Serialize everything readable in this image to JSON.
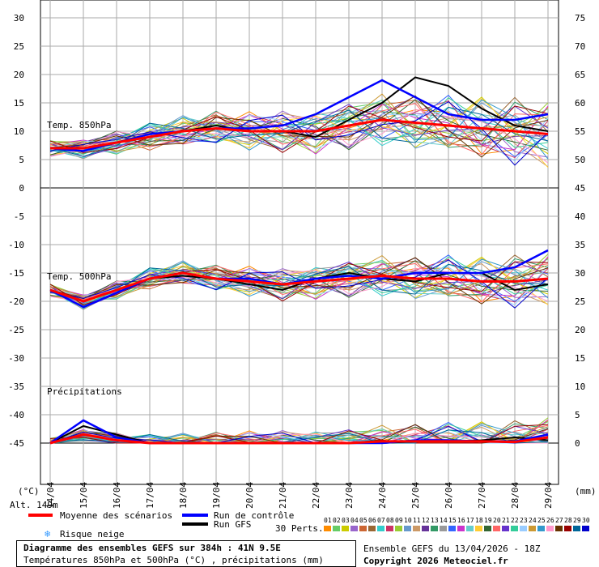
{
  "header": {
    "title_line1": "Diagramme des ensembles GEFS sur 384h : 41N 9.5E",
    "title_line2": "Températures 850hPa et 500hPa (°C) , précipitations (mm)",
    "run_info": "Ensemble GEFS du 13/04/2026 - 18Z",
    "copyright": "Copyright 2026 Meteociel.fr"
  },
  "legend": {
    "mean": "Moyenne des scénarios",
    "control": "Run de contrôle",
    "gfs": "Run GFS",
    "snow": "Risque neige",
    "perts": "30 Perts.",
    "pert_labels": [
      "01",
      "02",
      "03",
      "04",
      "05",
      "06",
      "07",
      "08",
      "09",
      "10",
      "11",
      "12",
      "13",
      "14",
      "15",
      "16",
      "17",
      "18",
      "19",
      "20",
      "21",
      "22",
      "23",
      "24",
      "25",
      "26",
      "27",
      "28",
      "29",
      "30"
    ],
    "pert_colors": [
      "#ff8c00",
      "#66cc66",
      "#cccc00",
      "#9966cc",
      "#cc6633",
      "#996633",
      "#33cccc",
      "#cc3366",
      "#99cc33",
      "#6699cc",
      "#cc9966",
      "#663399",
      "#339966",
      "#999999",
      "#3366ff",
      "#cc33cc",
      "#66cccc",
      "#ffcc33",
      "#336633",
      "#ff6666",
      "#6633cc",
      "#33cc99",
      "#99ccff",
      "#cc9933",
      "#3399cc",
      "#ff99cc",
      "#663300",
      "#990000",
      "#006699",
      "#0000cc"
    ],
    "mean_color": "#ff0000",
    "control_color": "#0000ff",
    "gfs_color": "#000000"
  },
  "panels": {
    "t850_label": "Temp. 850hPa",
    "t500_label": "Temp. 500hPa",
    "precip_label": "Précipitations",
    "alt_label": "Alt. 149m",
    "unit_left": "(°C)",
    "unit_right": "(mm)"
  },
  "chart_data": {
    "type": "line",
    "x_dates": [
      "14/04",
      "15/04",
      "16/04",
      "17/04",
      "18/04",
      "19/04",
      "20/04",
      "21/04",
      "22/04",
      "23/04",
      "24/04",
      "25/04",
      "26/04",
      "27/04",
      "28/04",
      "29/04"
    ],
    "left_axis_ticks": [
      30,
      25,
      20,
      15,
      10,
      5,
      0,
      -5,
      -10,
      -15,
      -20,
      -25,
      -30,
      -35,
      -40,
      -45
    ],
    "right_axis_ticks": [
      75,
      70,
      65,
      60,
      55,
      50,
      45,
      40,
      35,
      30,
      25,
      20,
      15,
      10,
      5,
      0
    ],
    "ylim_left": [
      -45,
      30
    ],
    "t850": {
      "mean": [
        7,
        7,
        8,
        9,
        10,
        10.5,
        10,
        10,
        10,
        11,
        12,
        11.5,
        11,
        10.5,
        10,
        9.5
      ],
      "control": [
        7,
        6.5,
        8,
        9.5,
        10,
        10.5,
        10.5,
        11,
        13,
        16,
        19,
        16,
        13,
        12,
        12,
        13
      ],
      "gfs": [
        7,
        7,
        8,
        9.5,
        10,
        11,
        10,
        10,
        9,
        12,
        15,
        19.5,
        18,
        14,
        11,
        10
      ]
    },
    "t500": {
      "mean": [
        -18,
        -20,
        -18,
        -16,
        -15,
        -16,
        -16.5,
        -17,
        -16.5,
        -16,
        -15.5,
        -16,
        -16,
        -16.5,
        -16.5,
        -16
      ],
      "control": [
        -18,
        -21,
        -18.5,
        -16,
        -15,
        -16,
        -16,
        -17,
        -16,
        -15.5,
        -16,
        -15,
        -15,
        -15,
        -14,
        -11
      ],
      "gfs": [
        -18,
        -20,
        -18,
        -16,
        -15.5,
        -16,
        -17,
        -18,
        -16,
        -15,
        -16,
        -16.5,
        -15,
        -15,
        -18,
        -17
      ]
    },
    "precip": {
      "mean": [
        0,
        1.5,
        0.5,
        0,
        0,
        0,
        0,
        0,
        0,
        0,
        0.3,
        0.3,
        0.3,
        0.3,
        0.2,
        1.0
      ],
      "control": [
        0,
        4,
        1,
        0,
        0,
        0,
        0,
        0,
        0,
        0,
        0,
        0.5,
        0.5,
        0.3,
        0.3,
        1.5
      ],
      "gfs": [
        0,
        3,
        1.5,
        0,
        0,
        0,
        0,
        0,
        0,
        0,
        0,
        0.3,
        0.3,
        0.5,
        1,
        0.5
      ]
    }
  }
}
